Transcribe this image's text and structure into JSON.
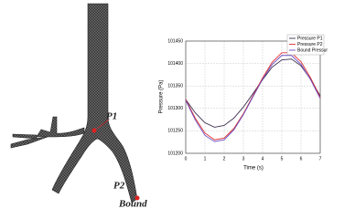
{
  "figure": {
    "labels": [
      "P1",
      "P2",
      "Bound"
    ]
  },
  "chart_data": {
    "type": "line",
    "x_label": "Time (s)",
    "y_label": "Pressure (Pa)",
    "x": [
      0,
      0.5,
      1,
      1.5,
      2,
      2.5,
      3,
      3.5,
      4,
      4.5,
      5,
      5.5,
      6,
      6.5,
      7
    ],
    "series": [
      {
        "name": "Pressure P1",
        "color": "#3b2f4f",
        "values": [
          101320,
          101290,
          101268,
          101258,
          101262,
          101278,
          101303,
          101333,
          101364,
          101392,
          101408,
          101410,
          101395,
          101365,
          101328
        ]
      },
      {
        "name": "Pressure P2",
        "color": "#e03030",
        "values": [
          101320,
          101278,
          101245,
          101230,
          101234,
          101255,
          101288,
          101328,
          101368,
          101403,
          101424,
          101424,
          101404,
          101368,
          101325
        ]
      },
      {
        "name": "Bound Pressur",
        "color": "#6a4bc0",
        "values": [
          101318,
          101274,
          101240,
          101226,
          101230,
          101252,
          101286,
          101326,
          101365,
          101398,
          101418,
          101418,
          101398,
          101364,
          101322
        ]
      }
    ],
    "xlim": [
      0,
      7
    ],
    "xticks": [
      0,
      1,
      2,
      3,
      4,
      5,
      6,
      7
    ],
    "ylim": [
      101200,
      101450
    ],
    "yticks": [
      101200,
      101250,
      101300,
      101350,
      101400,
      101450
    ],
    "grid": true,
    "legend": "top-right"
  }
}
